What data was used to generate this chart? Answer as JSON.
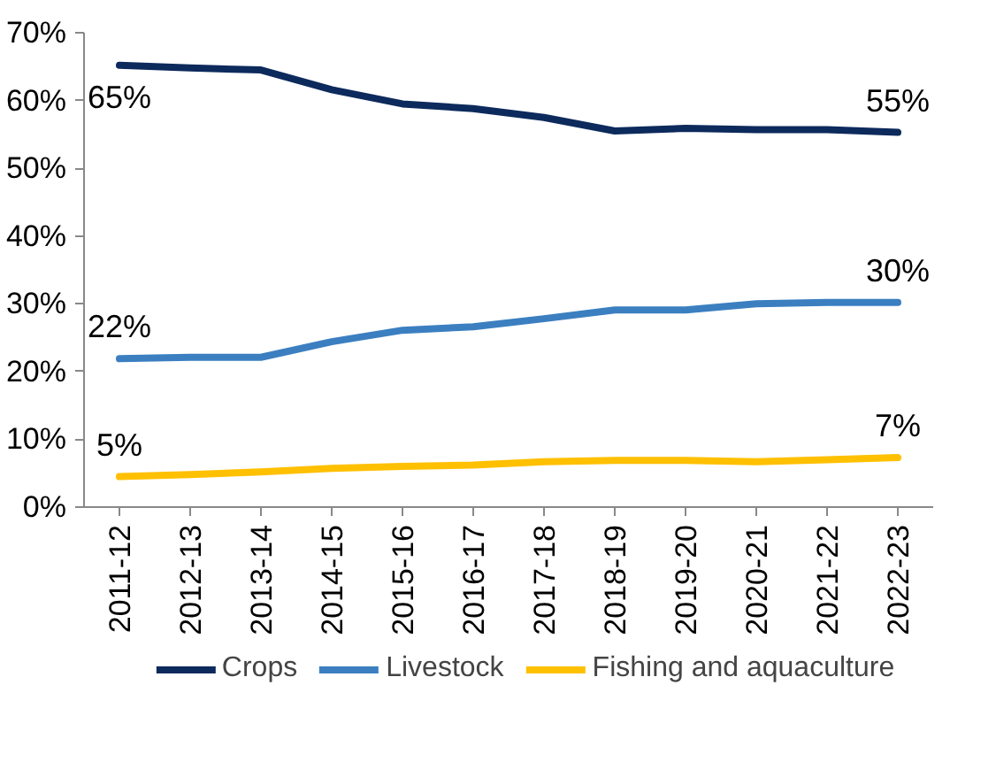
{
  "chart_data": {
    "type": "line",
    "categories": [
      "2011-12",
      "2012-13",
      "2013-14",
      "2014-15",
      "2015-16",
      "2016-17",
      "2017-18",
      "2018-19",
      "2019-20",
      "2020-21",
      "2021-22",
      "2022-23"
    ],
    "series": [
      {
        "name": "Crops",
        "color": "#0d2a5c",
        "values": [
          65.2,
          64.8,
          64.5,
          61.6,
          59.5,
          58.8,
          57.5,
          55.5,
          55.9,
          55.7,
          55.7,
          55.3
        ]
      },
      {
        "name": "Livestock",
        "color": "#3b7fc0",
        "values": [
          21.9,
          22.1,
          22.1,
          24.4,
          26.1,
          26.6,
          27.8,
          29.1,
          29.1,
          30.0,
          30.2,
          30.2
        ]
      },
      {
        "name": "Fishing and aquaculture",
        "color": "#ffc000",
        "values": [
          4.5,
          4.8,
          5.2,
          5.7,
          6.0,
          6.2,
          6.7,
          6.9,
          6.9,
          6.7,
          7.0,
          7.3
        ]
      }
    ],
    "ylim": [
      0,
      70
    ],
    "yticks": [
      {
        "value": 0,
        "label": "0%"
      },
      {
        "value": 10,
        "label": "10%"
      },
      {
        "value": 20,
        "label": "20%"
      },
      {
        "value": 30,
        "label": "30%"
      },
      {
        "value": 40,
        "label": "40%"
      },
      {
        "value": 50,
        "label": "50%"
      },
      {
        "value": 60,
        "label": "60%"
      },
      {
        "value": 70,
        "label": "70%"
      }
    ],
    "annotations": [
      {
        "text": "65%",
        "x": "2011-12",
        "y": 65.2
      },
      {
        "text": "55%",
        "x": "2022-23",
        "y": 55.3
      },
      {
        "text": "22%",
        "x": "2011-12",
        "y": 21.9
      },
      {
        "text": "30%",
        "x": "2022-23",
        "y": 30.2
      },
      {
        "text": "5%",
        "x": "2011-12",
        "y": 4.5
      },
      {
        "text": "7%",
        "x": "2022-23",
        "y": 7.3
      }
    ],
    "grid": false,
    "legend": "bottom",
    "marker": "none",
    "line_style": "solid"
  }
}
